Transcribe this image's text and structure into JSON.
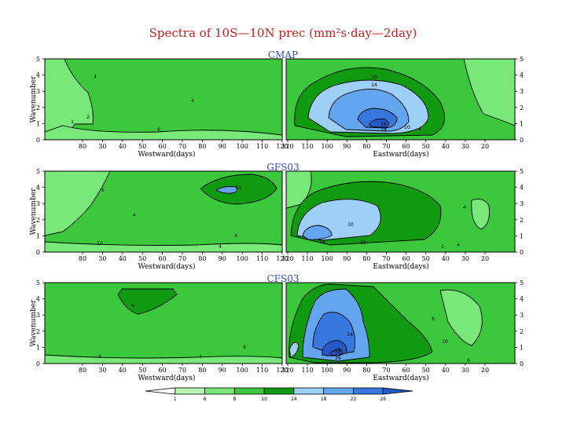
{
  "chart_data": {
    "type": "heatmap",
    "title": "Spectra of 10S—10N prec (mm²s·day—2day)",
    "ylabel": "Wavenumber",
    "x_left_label": "Westward(days)",
    "x_right_label": "Eastward(days)",
    "y_ticks": [
      "0",
      "1",
      "2",
      "3",
      "4",
      "5"
    ],
    "x_left_ticks": [
      "80",
      "30",
      "40",
      "50",
      "60",
      "70",
      "80",
      "90",
      "100",
      "110",
      "120"
    ],
    "x_right_ticks": [
      "120",
      "110",
      "100",
      "90",
      "80",
      "70",
      "60",
      "50",
      "40",
      "30",
      "20"
    ],
    "x_left_ticks_shown": [
      "80",
      "30",
      "40",
      "50",
      "60",
      "70",
      "80",
      "90",
      "100",
      "110",
      "120"
    ],
    "x_right_ticks_shown": [
      "120",
      "110",
      "100",
      "90",
      "80",
      "70",
      "60",
      "50",
      "40",
      "30",
      "20"
    ],
    "colorbar": {
      "levels": [
        "1",
        "6",
        "8",
        "10",
        "14",
        "18",
        "22",
        "26"
      ],
      "colors": [
        "#ffffff",
        "#b8f5b0",
        "#78e878",
        "#3cc83c",
        "#109a10",
        "#9ecff7",
        "#64a5ef",
        "#3778df",
        "#2559c8"
      ]
    },
    "panels": [
      {
        "title": "CMAP",
        "left_labels": [
          "2",
          "4",
          "1",
          "4",
          "6"
        ],
        "right_labels": [
          "10",
          "14",
          "18",
          "14",
          "10",
          "4"
        ],
        "peak_wavenumber": 1.5,
        "peak_period_days": 60,
        "peak_value_class": "18–22"
      },
      {
        "title": "GFS03",
        "left_labels": [
          "10",
          "4",
          "6",
          "4",
          "4",
          "10"
        ],
        "right_labels": [
          "10",
          "14",
          "10",
          "4",
          "4",
          "1"
        ],
        "peak_wavenumber": 1.3,
        "peak_period_days": 90,
        "peak_value_class": "14–18"
      },
      {
        "title": "CFS03",
        "left_labels": [
          "6",
          "6",
          "4",
          "4"
        ],
        "right_labels": [
          "14",
          "18",
          "22",
          "26",
          "10",
          "6",
          "6"
        ],
        "peak_wavenumber": 1.2,
        "peak_period_days": 70,
        "peak_value_class": "22–26"
      }
    ]
  }
}
